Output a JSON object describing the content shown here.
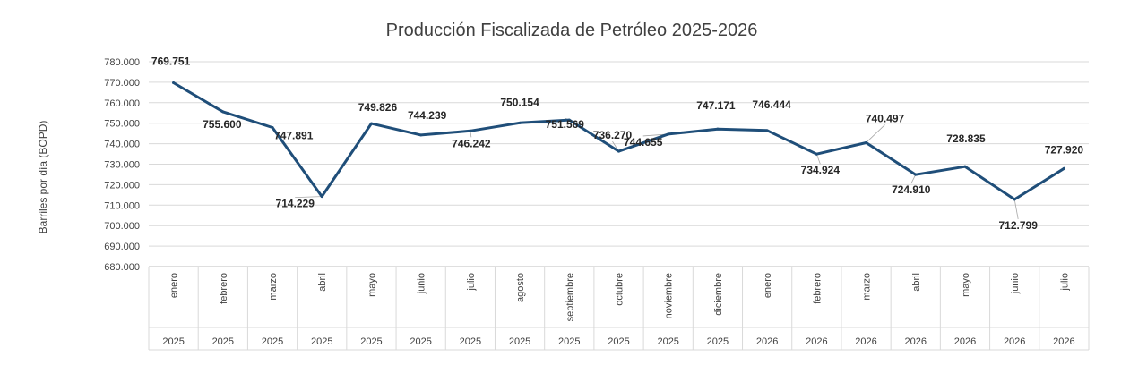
{
  "chart_data": {
    "type": "line",
    "title": "Producción Fiscalizada de Petróleo 2025-2026",
    "ylabel": "Barriles por día (BOPD)",
    "xlabel": "",
    "ylim": [
      680000,
      780000
    ],
    "y_ticks": [
      "680.000",
      "690.000",
      "700.000",
      "710.000",
      "720.000",
      "730.000",
      "740.000",
      "750.000",
      "760.000",
      "770.000",
      "780.000"
    ],
    "grid": true,
    "legend": "none",
    "line_color": "#1f4e79",
    "categories": [
      {
        "month": "enero",
        "year": "2025"
      },
      {
        "month": "febrero",
        "year": "2025"
      },
      {
        "month": "marzo",
        "year": "2025"
      },
      {
        "month": "abril",
        "year": "2025"
      },
      {
        "month": "mayo",
        "year": "2025"
      },
      {
        "month": "junio",
        "year": "2025"
      },
      {
        "month": "julio",
        "year": "2025"
      },
      {
        "month": "agosto",
        "year": "2025"
      },
      {
        "month": "septiembre",
        "year": "2025"
      },
      {
        "month": "octubre",
        "year": "2025"
      },
      {
        "month": "noviembre",
        "year": "2025"
      },
      {
        "month": "diciembre",
        "year": "2025"
      },
      {
        "month": "enero",
        "year": "2026"
      },
      {
        "month": "febrero",
        "year": "2026"
      },
      {
        "month": "marzo",
        "year": "2026"
      },
      {
        "month": "abril",
        "year": "2026"
      },
      {
        "month": "mayo",
        "year": "2026"
      },
      {
        "month": "junio",
        "year": "2026"
      },
      {
        "month": "julio",
        "year": "2026"
      }
    ],
    "values": [
      769751,
      755600,
      747891,
      714229,
      749826,
      744239,
      746242,
      750154,
      751569,
      736270,
      744655,
      747171,
      746444,
      734924,
      740497,
      724910,
      728835,
      712799,
      727920
    ],
    "data_labels": [
      "769.751",
      "755.600",
      "747.891",
      "714.229",
      "749.826",
      "744.239",
      "746.242",
      "750.154",
      "751.569",
      "736.270",
      "744.655",
      "747.171",
      "746.444",
      "734.924",
      "740.497",
      "724.910",
      "728.835",
      "712.799",
      "727.920"
    ]
  }
}
